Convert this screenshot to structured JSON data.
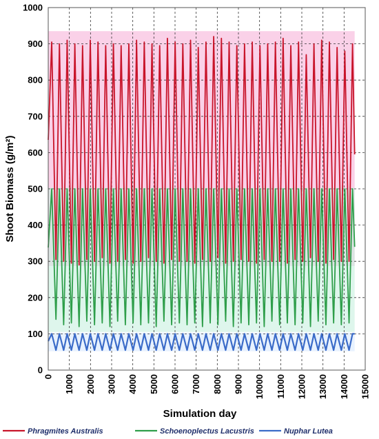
{
  "chart_data": {
    "type": "line",
    "title": "",
    "xlabel": "Simulation day",
    "ylabel": "Shoot Biomass (g/m²)",
    "xlim": [
      0,
      15000
    ],
    "ylim": [
      0,
      1000
    ],
    "x_ticks": [
      "0",
      "1000",
      "2000",
      "3000",
      "4000",
      "5000",
      "6000",
      "7000",
      "8000",
      "9000",
      "10000",
      "11000",
      "12000",
      "13000",
      "14000",
      "15000"
    ],
    "y_ticks": [
      "0",
      "100",
      "200",
      "300",
      "400",
      "500",
      "600",
      "700",
      "800",
      "900",
      "1000"
    ],
    "grid": true,
    "legend_position": "bottom",
    "series": [
      {
        "name": "Phragmites Australis",
        "color": "#c8142a",
        "fill": "#f7b2d9",
        "period_days": 365,
        "start_day": 0,
        "end_day": 14500,
        "peaks": [
          905,
          900,
          910,
          900,
          895,
          910,
          905,
          895,
          900,
          895,
          900,
          910,
          905,
          900,
          895,
          915,
          905,
          900,
          910,
          890,
          905,
          920,
          915,
          905,
          895,
          900,
          905,
          895,
          900,
          905,
          915,
          895,
          905,
          870,
          900,
          910,
          905,
          890,
          880,
          900
        ],
        "troughs": [
          305,
          300,
          295,
          290,
          305,
          300,
          310,
          295,
          300,
          305,
          295,
          300,
          310,
          300,
          295,
          305,
          300,
          300,
          295,
          305,
          300,
          310,
          295,
          300,
          305,
          300,
          295,
          305,
          300,
          300,
          295,
          305,
          300,
          310,
          300,
          295,
          305,
          300,
          300,
          300
        ],
        "final_value": 595
      },
      {
        "name": "Schoenoplectus Lacustris",
        "color": "#2e9e4a",
        "fill": "#c8f0e0",
        "period_days": 365,
        "start_day": 0,
        "end_day": 14500,
        "peaks": [
          500,
          500,
          500,
          500,
          500,
          500,
          500,
          500,
          500,
          500,
          500,
          500,
          500,
          500,
          500,
          500,
          500,
          500,
          500,
          500,
          500,
          500,
          500,
          500,
          500,
          500,
          500,
          500,
          500,
          500,
          500,
          500,
          500,
          500,
          500,
          500,
          500,
          500,
          500,
          500
        ],
        "troughs": [
          140,
          125,
          130,
          120,
          135,
          125,
          130,
          120,
          135,
          125,
          130,
          125,
          130,
          120,
          135,
          125,
          130,
          125,
          130,
          120,
          130,
          125,
          135,
          120,
          130,
          125,
          130,
          120,
          135,
          125,
          130,
          125,
          130,
          120,
          135,
          125,
          130,
          125,
          130,
          125
        ],
        "final_value": 340
      },
      {
        "name": "Nuphar Lutea",
        "color": "#3a6bc8",
        "fill": "#d8eaff",
        "period_days": 365,
        "start_day": 0,
        "end_day": 14500,
        "peaks": [
          100,
          100,
          100,
          100,
          100,
          100,
          100,
          100,
          100,
          100,
          100,
          100,
          100,
          100,
          100,
          100,
          100,
          100,
          100,
          100,
          100,
          100,
          100,
          100,
          100,
          100,
          100,
          100,
          100,
          100,
          100,
          100,
          100,
          100,
          100,
          100,
          100,
          100,
          100,
          100
        ],
        "troughs": [
          55,
          55,
          55,
          55,
          55,
          55,
          55,
          55,
          55,
          55,
          55,
          55,
          55,
          55,
          55,
          55,
          55,
          55,
          55,
          55,
          55,
          55,
          55,
          55,
          55,
          55,
          55,
          55,
          55,
          55,
          55,
          55,
          55,
          55,
          55,
          55,
          55,
          55,
          55,
          55
        ],
        "final_value": 100
      }
    ]
  }
}
